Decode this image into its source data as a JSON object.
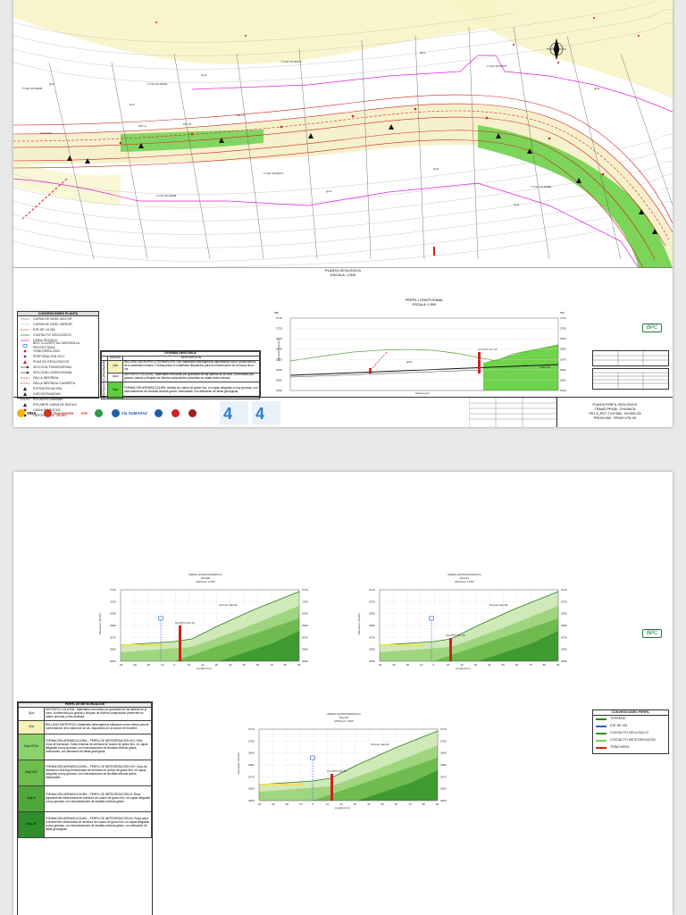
{
  "sheet1": {
    "map": {
      "title": "PLANTA GEOLÓGICA",
      "scale": "ESCALA: 1:500",
      "labels": [
        "A Girardot",
        "Qcol",
        "Qcol",
        "Qcol",
        "Qcol",
        "Qcol",
        "Qcd",
        "Qcd",
        "Qcd",
        "PD7-A",
        "PD7-B",
        "PD7-C",
        "T-CH7-30-00070",
        "T-CH7-30-00064",
        "T-CH7-30-00072",
        "T-CH7-30-00076",
        "T-CH7-30-00080",
        "T-CH7-30-00066",
        "T-CH7-30-00068"
      ]
    },
    "legend": {
      "title": "CONVENCIONES PLANTA",
      "items": [
        {
          "label": "CURVA DE NIVEL MAYOR",
          "color": "#9a9a9a",
          "kind": "line"
        },
        {
          "label": "CURVA DE NIVEL MENOR",
          "color": "#c8c8c8",
          "kind": "line"
        },
        {
          "label": "EJE DE LA VÍA",
          "color": "#d02020",
          "kind": "dash"
        },
        {
          "label": "CONTACTO GEOLÓGICO",
          "color": "#3b8a2e",
          "kind": "line"
        },
        {
          "label": "LINEA TÉCNICA",
          "color": "#e020e0",
          "kind": "line"
        },
        {
          "label": "BOX CULVERT ALCANTARILLA PROYECTADA",
          "color": "#2060d0",
          "kind": "box"
        },
        {
          "label": "TRINCHERA 2020",
          "color": "#d02020",
          "kind": "dot"
        },
        {
          "label": "PERFORACIÓN 2017",
          "color": "#8a1fd0",
          "kind": "dot"
        },
        {
          "label": "PUNTOS GEOLÓGICOS",
          "color": "#d02020",
          "kind": "tri"
        },
        {
          "label": "SECCIÓN TRANSVERSAL",
          "color": "#222222",
          "kind": "arrow"
        },
        {
          "label": "SECCIÓN LONGITUDINAL",
          "color": "#222222",
          "kind": "arrow"
        },
        {
          "label": "FALLA INFERIDA",
          "color": "#d02020",
          "kind": "dash"
        },
        {
          "label": "FALLA INFERIDA CUBIERTA",
          "color": "#d02020",
          "kind": "dash"
        },
        {
          "label": "ESTRATIFICACIÓN",
          "color": "#222222",
          "kind": "tri"
        },
        {
          "label": "DISCONTINUIDAD",
          "color": "#222222",
          "kind": "tri"
        },
        {
          "label": "EROSIÓN LAMINAR",
          "color": "#222222",
          "kind": "dash"
        },
        {
          "label": "ESCARPE CAIDA DE ROCAS",
          "color": "#222222",
          "kind": "tri"
        },
        {
          "label": "CAIDA DE ROCAS",
          "color": "#d02020",
          "kind": "dot"
        },
        {
          "label": "DEPÓSITO DE TALUD",
          "color": "#222222",
          "kind": "dot"
        }
      ]
    },
    "geo_legend": {
      "title": "LEYENDA GEOLÓGICA",
      "col_unit": "UNIDAD",
      "col_desc": "DESCRIPCIÓN",
      "rows": [
        {
          "group": "CUATERNARIO",
          "unit": "Qra",
          "color": "#f6f3b8",
          "desc": "RELLENO ANTRÓPICO (TERRAPLÉN): Son materiales heterogéneos depositados como consecuencia de la actividad humana. Corresponden a materiales dispuestos para la conformación de la banca de la vía."
        },
        {
          "group": "CUATERNARIO",
          "unit": "Qcol",
          "color": "#ffffff",
          "desc": "DEPÓSITO COLUVIAL: Materiales removidos por gravedad de las laderas de la zona, conformado por gravas, clastos y bloques de diversa composición presentes en matriz areno-limosa."
        },
        {
          "group": "CRETÁCICO",
          "unit": "Kspl",
          "color": "#5fce3a",
          "desc": "FORMACIÓN ARENISCA DURA: Arenita de cuarzo de grano fino, en capas delgadas a muy gruesas, con intercalaciones de limolitas silíceas grises, fracturadas, con alteración de fallas geológicas."
        }
      ]
    },
    "profile": {
      "title": "PERFIL LONGITUDINAL",
      "scale": "ESCALA: 1:500",
      "ylabel": "Elevación (msnm)",
      "xlabel": "Abscisa (m)",
      "left_axis_top": "580",
      "right_axis_top": "560",
      "y_ticks": [
        "2710",
        "2700",
        "2690",
        "2680",
        "2670",
        "2660",
        "2650",
        "2640"
      ],
      "x_ticks": [
        "K9+560",
        "K9+580",
        "K9+600",
        "K9+620",
        "K9+640",
        "K9+660",
        "K9+680",
        "K9+700",
        "K9+720",
        "K9+740",
        "K9+760",
        "K9+780",
        "K9+800",
        "K9+820",
        "K9+840"
      ],
      "labels": {
        "qcol": "Qcol",
        "kspl": "Kspl",
        "pd": "Cto.PD7-A-P-15",
        "eje": "EJE VÍA"
      }
    },
    "bpc": "BPC",
    "logos": [
      "VIDA",
      "Transporte",
      "ANI",
      "",
      "Vía SUMAPAZ",
      "",
      "",
      ""
    ],
    "title_block": {
      "line1": "PLANTA PERFIL GEOLÓGICO",
      "line2": "TRAMO PR188 - CHUSACÁ",
      "line3": "PD7-A_PD7-T K9+580 - K9+600-CB",
      "line4": "PR100+000 - PR100+178, 00"
    }
  },
  "sheet2": {
    "sections": [
      {
        "title": "PERFIL ESTRATIGRÁFICO",
        "sub": "K9+600",
        "scale": "ESCALA: 1:500",
        "y_ticks": [
          "2710",
          "2700",
          "2690",
          "2680",
          "2670",
          "2660",
          "2650"
        ],
        "x_ticks": [
          "-40",
          "-30",
          "-20",
          "-10",
          "0",
          "10",
          "20",
          "30",
          "40",
          "50",
          "60",
          "70",
          "80",
          "90"
        ],
        "xlabel": "Longitud (m)",
        "ylabel": "Elevación (msnm)",
        "label_terreno": "Terreno natural",
        "label_pd": "Cto.PD7-A-P-15"
      },
      {
        "title": "PERFIL ESTRATIGRÁFICO",
        "sub": "K9+672",
        "scale": "ESCALA: 1:500",
        "y_ticks": [
          "2710",
          "2700",
          "2690",
          "2680",
          "2670",
          "2660",
          "2650"
        ],
        "x_ticks": [
          "-40",
          "-30",
          "-20",
          "-10",
          "0",
          "10",
          "20",
          "30",
          "40",
          "50",
          "60",
          "70",
          "80",
          "90"
        ],
        "xlabel": "Longitud (m)",
        "ylabel": "Elevación (msnm)",
        "label_terreno": "Terreno natural",
        "label_pd": "Cto.PD7-A-P-15"
      },
      {
        "title": "PERFIL ESTRATIGRÁFICO",
        "sub": "K9+715",
        "scale": "ESCALA: 1:500",
        "y_ticks": [
          "2710",
          "2700",
          "2690",
          "2680",
          "2670",
          "2660",
          "2650"
        ],
        "x_ticks": [
          "-40",
          "-30",
          "-20",
          "-10",
          "0",
          "10",
          "20",
          "30",
          "40",
          "50",
          "60",
          "70",
          "80",
          "90"
        ],
        "xlabel": "Longitud (m)",
        "ylabel": "Elevación (msnm)",
        "label_terreno": "Terreno natural",
        "label_pd": "Cto.PD7-A-P-15"
      }
    ],
    "metro_table": {
      "title": "PERFIL DE METEORIZACIÓN",
      "rows": [
        {
          "unit": "Qcol",
          "color": "#ffffff",
          "desc": "DEPÓSITO COLUVIAL: Materiales removidos por gravedad de las laderas de la zona, conformado por gravas y bloques de diversa composición presentes en matriz arenosa y limo-arcillosa."
        },
        {
          "unit": "Qra",
          "color": "#f6f3b8",
          "desc": "RELLENO ANTRÓPICO: Materiales heterogéneos utilizados como relleno para la conformación de la banca de la vía, dispuestos por la acción del hombre."
        },
        {
          "unit": "Kspl-VI/Cm",
          "color": "#8ad36a",
          "desc": "FORMACIÓN ARENISCA DURA – PERFIL DE METEORIZACIÓN VI/C-HHA: Zona de transición. Suelo residual de arenisca de cuarzo de grano fino, en capas delgadas a muy gruesas, con intercalaciones de limolitas silíceas grises, fracturadas, con alteración de fallas geológicas."
        },
        {
          "unit": "Kspl-V/IV",
          "color": "#6dbe4c",
          "desc": "FORMACIÓN ARENISCA DURA – PERFIL DE METEORIZACIÓN V/IV: Zona de transición roca muy meteorizada de arenisca de cuarzo de grano fino, en capas delgadas a muy gruesas, con intercalaciones de limolitas silíceas grises, fracturadas."
        },
        {
          "unit": "Kspl-III",
          "color": "#4fa83a",
          "desc": "FORMACIÓN ARENISCA DURA – PERFIL DE METEORIZACIÓN III: Roca parcialmente meteorizada de arenisca de cuarzo de grano fino, en capas delgadas a muy gruesas, con intercalaciones de limolitas silíceas grises."
        },
        {
          "unit": "Kspl-II/I",
          "color": "#2f8f2a",
          "desc": "FORMACIÓN ARENISCA DURA – PERFIL DE METEORIZACIÓN II/I: Roca sana a levemente meteorizada de arenisca de cuarzo de grano fino, en capas delgadas a muy gruesas, con intercalaciones de limolitas silíceas grises, con alteración de fallas geológicas."
        }
      ]
    },
    "bpc": "BPC",
    "side_legend": {
      "title": "CONVENCIONES PERFIL",
      "items": [
        "TERRENO",
        "EJE DE VÍA",
        "CONTACTO GEOLÓGICO",
        "CONTACTO METEORIZACIÓN",
        "TRINCHERA"
      ]
    }
  }
}
